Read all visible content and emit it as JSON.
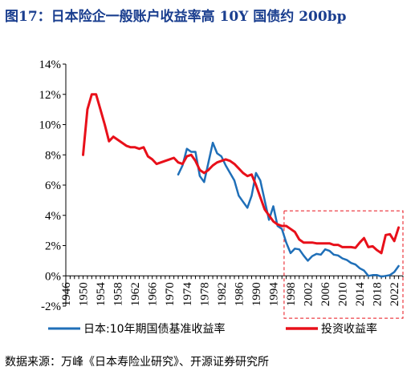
{
  "title": "图17：日本险企一般账户收益率高 10Y 国债约 200bp",
  "source": "数据来源：万峰《日本寿险业研究》、开源证券研究所",
  "chart_data": {
    "type": "line",
    "title": "图17：日本险企一般账户收益率高 10Y 国债约 200bp",
    "ylim": [
      -2,
      14
    ],
    "xlim": [
      1946,
      2024
    ],
    "y_ticks": [
      "-2%",
      "0%",
      "2%",
      "4%",
      "6%",
      "8%",
      "10%",
      "12%",
      "14%"
    ],
    "x_ticks": [
      "1946",
      "1950",
      "1954",
      "1958",
      "1962",
      "1966",
      "1970",
      "1974",
      "1978",
      "1982",
      "1986",
      "1990",
      "1994",
      "1998",
      "2002",
      "2006",
      "2010",
      "2014",
      "2018",
      "2022"
    ],
    "grid": false,
    "legend_position": "bottom",
    "highlight_box": {
      "x": [
        1996.5,
        2024
      ],
      "y": [
        -2.8,
        4.3
      ]
    },
    "series": [
      {
        "name": "日本:10年期国债基准收益率",
        "color": "#1f6fb8",
        "x": [
          1972,
          1973,
          1974,
          1975,
          1976,
          1977,
          1978,
          1979,
          1980,
          1981,
          1982,
          1983,
          1984,
          1985,
          1986,
          1987,
          1988,
          1989,
          1990,
          1991,
          1992,
          1993,
          1994,
          1995,
          1996,
          1997,
          1998,
          1999,
          2000,
          2001,
          2002,
          2003,
          2004,
          2005,
          2006,
          2007,
          2008,
          2009,
          2010,
          2011,
          2012,
          2013,
          2014,
          2015,
          2016,
          2017,
          2018,
          2019,
          2020,
          2021,
          2022,
          2023
        ],
        "y": [
          6.7,
          7.3,
          8.4,
          8.2,
          8.2,
          6.6,
          6.2,
          7.5,
          8.8,
          8.1,
          7.9,
          7.3,
          6.8,
          6.3,
          5.3,
          4.9,
          4.5,
          5.3,
          6.8,
          6.3,
          5.0,
          3.7,
          4.6,
          3.3,
          3.1,
          2.2,
          1.5,
          1.8,
          1.75,
          1.35,
          1.0,
          1.3,
          1.45,
          1.4,
          1.75,
          1.65,
          1.4,
          1.35,
          1.15,
          1.05,
          0.85,
          0.75,
          0.5,
          0.35,
          0.0,
          0.05,
          0.05,
          -0.05,
          0.0,
          0.05,
          0.25,
          0.65
        ]
      },
      {
        "name": "投资收益率",
        "color": "#e8101a",
        "x": [
          1950,
          1951,
          1952,
          1953,
          1954,
          1955,
          1956,
          1957,
          1958,
          1959,
          1960,
          1961,
          1962,
          1963,
          1964,
          1965,
          1966,
          1967,
          1968,
          1969,
          1970,
          1971,
          1972,
          1973,
          1974,
          1975,
          1976,
          1977,
          1978,
          1979,
          1980,
          1981,
          1982,
          1983,
          1984,
          1985,
          1986,
          1987,
          1988,
          1989,
          1990,
          1991,
          1992,
          1993,
          1994,
          1995,
          1996,
          1997,
          1998,
          1999,
          2000,
          2001,
          2002,
          2003,
          2004,
          2005,
          2006,
          2007,
          2008,
          2009,
          2010,
          2011,
          2012,
          2013,
          2014,
          2015,
          2016,
          2017,
          2018,
          2019,
          2020,
          2021,
          2022,
          2023
        ],
        "y": [
          8.0,
          11.0,
          12.0,
          12.0,
          11.0,
          10.0,
          8.9,
          9.2,
          9.0,
          8.8,
          8.6,
          8.5,
          8.5,
          8.4,
          8.5,
          7.9,
          7.7,
          7.4,
          7.5,
          7.6,
          7.7,
          7.8,
          7.5,
          7.4,
          7.9,
          8.0,
          7.6,
          7.0,
          6.8,
          7.0,
          7.3,
          7.5,
          7.6,
          7.7,
          7.6,
          7.4,
          7.1,
          6.8,
          6.6,
          6.7,
          6.0,
          5.2,
          4.4,
          4.0,
          3.6,
          3.4,
          3.3,
          3.3,
          3.1,
          2.9,
          2.4,
          2.2,
          2.2,
          2.2,
          2.15,
          2.15,
          2.15,
          2.15,
          2.05,
          2.05,
          1.9,
          1.9,
          1.9,
          1.85,
          2.2,
          2.5,
          1.9,
          1.95,
          1.7,
          1.5,
          2.7,
          2.75,
          2.3,
          3.2
        ]
      }
    ]
  }
}
